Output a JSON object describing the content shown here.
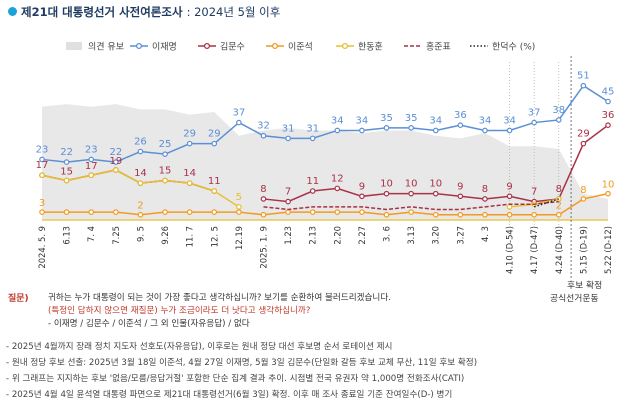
{
  "header": {
    "title": "제21대 대통령선거 사전여론조사",
    "subtitle": ": 2024년 5월 이후"
  },
  "colors": {
    "undecided": "#e0e0e0",
    "lee_jm": "#5b8fd6",
    "kim_ms": "#a83248",
    "lee_js": "#f39a1e",
    "han_dh": "#e8c030",
    "hong_jp": "#a83248",
    "han_ds": "#222222",
    "zero_line": "#e8c030"
  },
  "chart_data": {
    "type": "line",
    "categories": [
      "2024. 5. 9",
      "6.13",
      "7. 4",
      "7.25",
      "9. 5",
      "9.26",
      "11. 7",
      "12. 5",
      "12.19",
      "2025. 1. 9",
      "1.23",
      "2.13",
      "2.20",
      "2.27",
      "3. 6",
      "3.13",
      "3.20",
      "3.27",
      "4. 3",
      "4.10 (D-54)",
      "4.17 (D-47)",
      "4.24 (D-40)",
      "5.15 (D-19)",
      "5.22 (D-12)"
    ],
    "ylim": [
      0,
      60
    ],
    "legend": [
      "의견 유보",
      "이재명",
      "김문수",
      "이준석",
      "한동훈",
      "홍준표",
      "한덕수 (%)"
    ],
    "series": [
      {
        "name": "의견 유보",
        "key": "undecided",
        "type": "area",
        "values": [
          43,
          44,
          43,
          44,
          42,
          42,
          40,
          41,
          32,
          34,
          35,
          34,
          34,
          33,
          34,
          34,
          32,
          31,
          33,
          28,
          28,
          27,
          10,
          8
        ]
      },
      {
        "name": "이재명",
        "key": "lee_jm",
        "values": [
          23,
          22,
          23,
          22,
          26,
          25,
          29,
          29,
          37,
          32,
          31,
          31,
          34,
          34,
          35,
          35,
          34,
          36,
          34,
          34,
          37,
          38,
          51,
          45
        ],
        "labels": [
          "23",
          "22",
          "23",
          "22",
          "26",
          "25",
          "29",
          "29",
          "37",
          "32",
          "31",
          "31",
          "34",
          "34",
          "35",
          "35",
          "34",
          "36",
          "34",
          "34",
          "37",
          "38",
          "51",
          "45"
        ]
      },
      {
        "name": "김문수",
        "key": "kim_ms",
        "values": [
          17,
          15,
          17,
          19,
          14,
          15,
          14,
          11,
          null,
          8,
          7,
          11,
          12,
          9,
          10,
          10,
          10,
          9,
          8,
          9,
          7,
          8,
          29,
          36
        ],
        "labels": [
          "17",
          "15",
          "17",
          "19",
          "14",
          "15",
          "14",
          "11",
          "",
          "8",
          "7",
          "11",
          "12",
          "9",
          "10",
          "10",
          "10",
          "9",
          "8",
          "9",
          "7",
          "8",
          "29",
          "36"
        ]
      },
      {
        "name": "이준석",
        "key": "lee_js",
        "values": [
          3,
          3,
          3,
          3,
          2,
          3,
          3,
          3,
          3,
          2,
          3,
          3,
          3,
          3,
          2,
          3,
          2,
          2,
          2,
          2,
          2,
          2,
          8,
          10
        ],
        "labels": [
          "3",
          "",
          "",
          "",
          "2",
          "",
          "",
          "",
          "",
          "",
          "",
          "",
          "",
          "",
          "",
          "",
          "",
          "",
          "",
          "",
          "",
          "2",
          "8",
          "10"
        ]
      },
      {
        "name": "한동훈",
        "key": "han_dh",
        "values": [
          17,
          15,
          17,
          19,
          14,
          15,
          14,
          11,
          5,
          null,
          null,
          null,
          null,
          null,
          null,
          null,
          null,
          null,
          null,
          5,
          6,
          8,
          null,
          null
        ],
        "labels": [
          "",
          "",
          "",
          "",
          "",
          "",
          "",
          "",
          "5",
          "",
          "",
          "",
          "",
          "",
          "",
          "",
          "",
          "",
          "",
          "",
          "",
          "",
          "",
          ""
        ]
      },
      {
        "name": "홍준표",
        "key": "hong_jp",
        "values": [
          null,
          null,
          null,
          null,
          null,
          null,
          null,
          null,
          null,
          5,
          4,
          5,
          5,
          5,
          4,
          5,
          4,
          4,
          5,
          6,
          6,
          7,
          null,
          null
        ]
      },
      {
        "name": "한덕수 (%)",
        "key": "han_ds",
        "values": [
          null,
          null,
          null,
          null,
          null,
          null,
          null,
          null,
          null,
          null,
          null,
          null,
          null,
          null,
          null,
          null,
          null,
          null,
          null,
          null,
          5,
          8,
          null,
          null
        ]
      }
    ]
  },
  "side_notes": {
    "candidate_confirmed": "후보 확정",
    "official_campaign": "공식선거운동"
  },
  "questions": {
    "label": "질문)",
    "q1": "귀하는 누가 대통령이 되는 것이 가장 좋다고 생각하십니까? 보기를 순환하여 불러드리겠습니다.",
    "q2": "(특정인 답하지 않으면 재질문) 누가 조금이라도 더 낫다고 생각하십니까?",
    "q3": "- 이재명 / 김문수 / 이준석 / 그 외 인물(자유응답) / 없다"
  },
  "footnotes": [
    "- 2025년 4월까지 장래 정치 지도자 선호도(자유응답), 이후로는 원내 정당 대선 후보명 순서 로테이션 제시",
    "- 원내 정당 후보 선출: 2025년 3월 18일 이준석, 4월 27일 이재명, 5월 3일 김문수(단일화 갈등 후보 교체 무산, 11일 후보 확정)",
    "- 위 그래프는 지지하는 후보 '없음/모름/응답거절' 포함한 단순 집계 결과 추이. 시점별 전국 유권자 약 1,000명 전화조사(CATI)",
    "- 2025년 4월 4일 윤석열 대통령 파면으로 제21대 대통령선거(6월 3일) 확정. 이후 매 조사 종료일 기준 잔여일수(D-) 병기"
  ]
}
